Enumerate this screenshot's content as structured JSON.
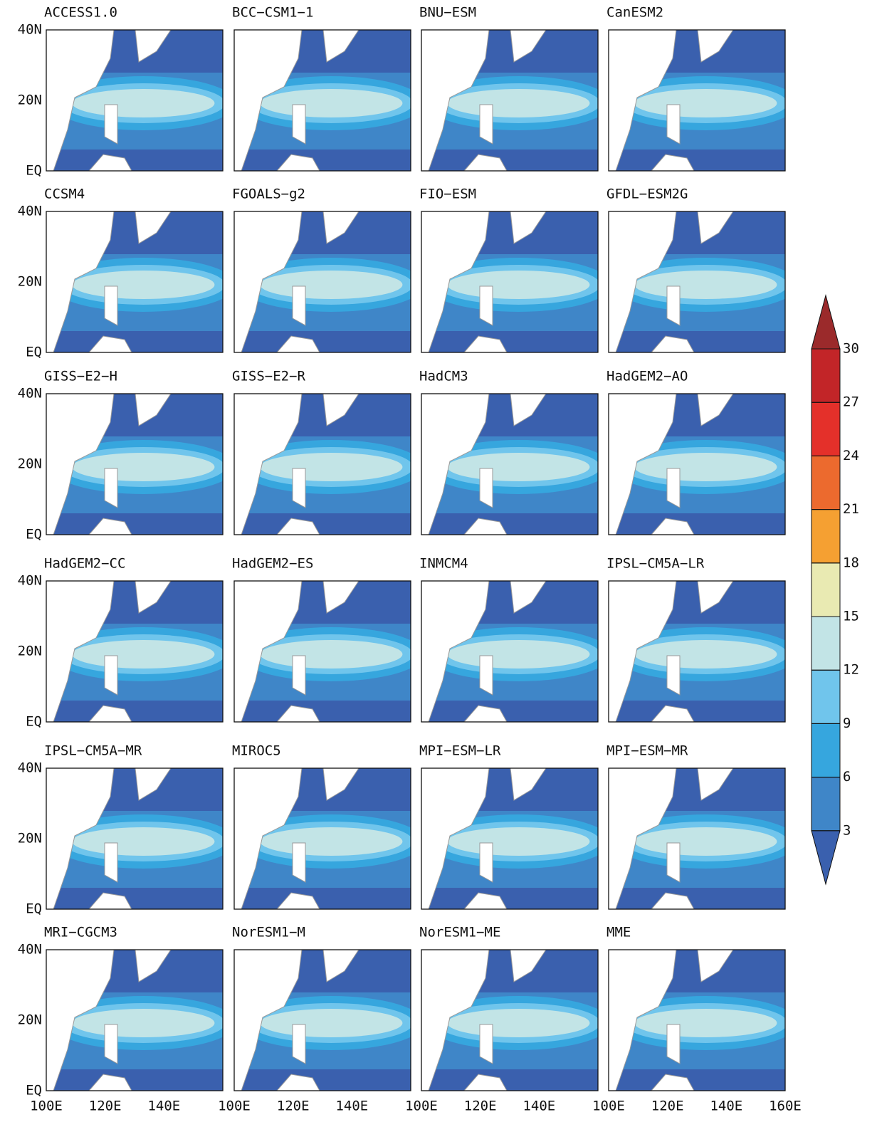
{
  "panels": [
    {
      "title": "ACCESS1.0"
    },
    {
      "title": "BCC−CSM1−1"
    },
    {
      "title": "BNU−ESM"
    },
    {
      "title": "CanESM2"
    },
    {
      "title": "CCSM4"
    },
    {
      "title": "FGOALS−g2"
    },
    {
      "title": "FIO−ESM"
    },
    {
      "title": "GFDL−ESM2G"
    },
    {
      "title": "GISS−E2−H"
    },
    {
      "title": "GISS−E2−R"
    },
    {
      "title": "HadCM3"
    },
    {
      "title": "HadGEM2−AO"
    },
    {
      "title": "HadGEM2−CC"
    },
    {
      "title": "HadGEM2−ES"
    },
    {
      "title": "INMCM4"
    },
    {
      "title": "IPSL−CM5A−LR"
    },
    {
      "title": "IPSL−CM5A−MR"
    },
    {
      "title": "MIROC5"
    },
    {
      "title": "MPI−ESM−LR"
    },
    {
      "title": "MPI−ESM−MR"
    },
    {
      "title": "MRI−CGCM3"
    },
    {
      "title": "NorESM1−M"
    },
    {
      "title": "NorESM1−ME"
    },
    {
      "title": "MME"
    }
  ],
  "y_axis_labels": [
    "40N",
    "20N",
    "EQ"
  ],
  "x_axis_labels": [
    "100E",
    "120E",
    "140E",
    "160E"
  ],
  "colorbar": {
    "levels": [
      3,
      6,
      9,
      12,
      15,
      18,
      21,
      24,
      27,
      30
    ],
    "colors": [
      "#3a60ae",
      "#3f86c8",
      "#36a6de",
      "#70c5ec",
      "#c2e4e6",
      "#e9eab2",
      "#f5a032",
      "#ec6a2e",
      "#e4302a",
      "#c22528",
      "#9b2a2b"
    ]
  }
}
